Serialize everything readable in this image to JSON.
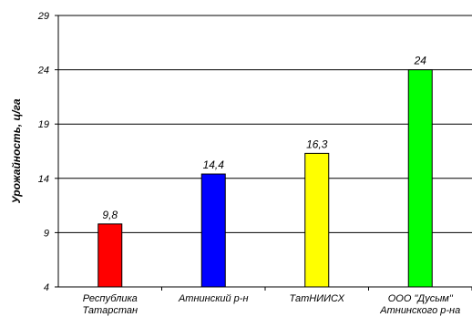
{
  "chart_data": {
    "type": "bar",
    "title": "",
    "xlabel": "",
    "ylabel": "Урожайность, ц/га",
    "ylim": [
      4,
      29
    ],
    "yticks": [
      4,
      9,
      14,
      19,
      24,
      29
    ],
    "grid": true,
    "categories": [
      [
        "Республика",
        "Татарстан"
      ],
      [
        "Атнинский р-н"
      ],
      [
        "ТатНИИСХ"
      ],
      [
        "ООО \"Дусым\"",
        "Атнинского р-на"
      ]
    ],
    "values": [
      9.8,
      14.4,
      16.3,
      24
    ],
    "data_labels": [
      "9,8",
      "14,4",
      "16,3",
      "24"
    ],
    "colors": [
      "#ff0000",
      "#0000ff",
      "#ffff00",
      "#00ff00"
    ]
  }
}
